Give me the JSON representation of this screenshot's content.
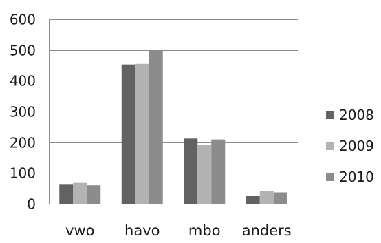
{
  "chart_data": {
    "type": "bar",
    "categories": [
      "vwo",
      "havo",
      "mbo",
      "anders"
    ],
    "series": [
      {
        "name": "2008",
        "values": [
          62,
          453,
          212,
          25
        ],
        "color": "#626262"
      },
      {
        "name": "2009",
        "values": [
          68,
          455,
          192,
          42
        ],
        "color": "#b3b3b3"
      },
      {
        "name": "2010",
        "values": [
          60,
          500,
          209,
          37
        ],
        "color": "#8c8c8c"
      }
    ],
    "yticks": [
      "0",
      "100",
      "200",
      "300",
      "400",
      "500",
      "600"
    ],
    "ylim": [
      0,
      600
    ],
    "grid": true,
    "legend": "right",
    "title": "",
    "xlabel": "",
    "ylabel": ""
  }
}
